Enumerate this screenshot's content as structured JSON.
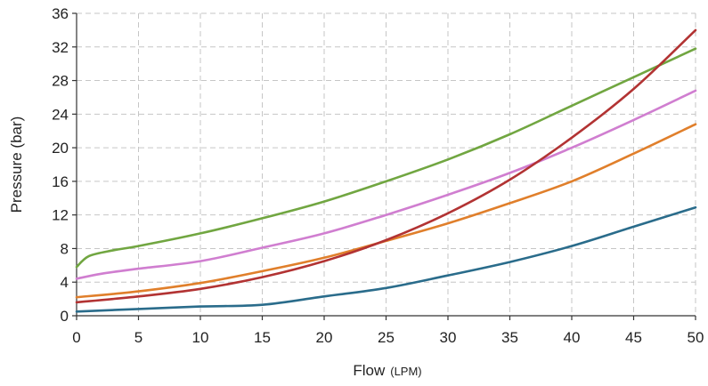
{
  "chart_data": {
    "type": "line",
    "xlabel": "Flow",
    "xlabel_unit": "(LPM)",
    "ylabel": "Pressure (bar)",
    "xlim": [
      0,
      50
    ],
    "ylim": [
      0,
      36
    ],
    "x_ticks": [
      0,
      5,
      10,
      15,
      20,
      25,
      30,
      35,
      40,
      45,
      50
    ],
    "y_ticks": [
      0,
      4,
      8,
      12,
      16,
      20,
      24,
      28,
      32,
      36
    ],
    "grid": true,
    "series": [
      {
        "color": "#71a641",
        "x": [
          0,
          1,
          3,
          5,
          10,
          15,
          20,
          25,
          30,
          35,
          40,
          45,
          50
        ],
        "y": [
          5.8,
          7.1,
          7.8,
          8.3,
          9.8,
          11.6,
          13.6,
          16.0,
          18.6,
          21.6,
          25.0,
          28.4,
          31.8
        ]
      },
      {
        "color": "#d07ed0",
        "x": [
          0,
          2,
          5,
          10,
          15,
          20,
          25,
          30,
          35,
          40,
          45,
          50
        ],
        "y": [
          4.4,
          5.0,
          5.6,
          6.5,
          8.1,
          9.8,
          12.0,
          14.4,
          17.0,
          20.0,
          23.3,
          26.8
        ]
      },
      {
        "color": "#e07f2b",
        "x": [
          0,
          5,
          10,
          15,
          20,
          25,
          30,
          35,
          40,
          45,
          50
        ],
        "y": [
          2.2,
          2.9,
          3.9,
          5.3,
          6.9,
          8.9,
          11.0,
          13.4,
          16.0,
          19.3,
          22.8
        ]
      },
      {
        "color": "#b23333",
        "x": [
          0,
          5,
          10,
          15,
          20,
          25,
          30,
          35,
          40,
          45,
          50
        ],
        "y": [
          1.6,
          2.3,
          3.2,
          4.6,
          6.5,
          9.0,
          12.2,
          16.2,
          21.2,
          27.0,
          34.0
        ]
      },
      {
        "color": "#2a6c8b",
        "x": [
          0,
          5,
          10,
          15,
          20,
          25,
          30,
          35,
          40,
          45,
          50
        ],
        "y": [
          0.5,
          0.8,
          1.1,
          1.3,
          2.3,
          3.3,
          4.8,
          6.4,
          8.3,
          10.6,
          12.9
        ]
      }
    ]
  }
}
